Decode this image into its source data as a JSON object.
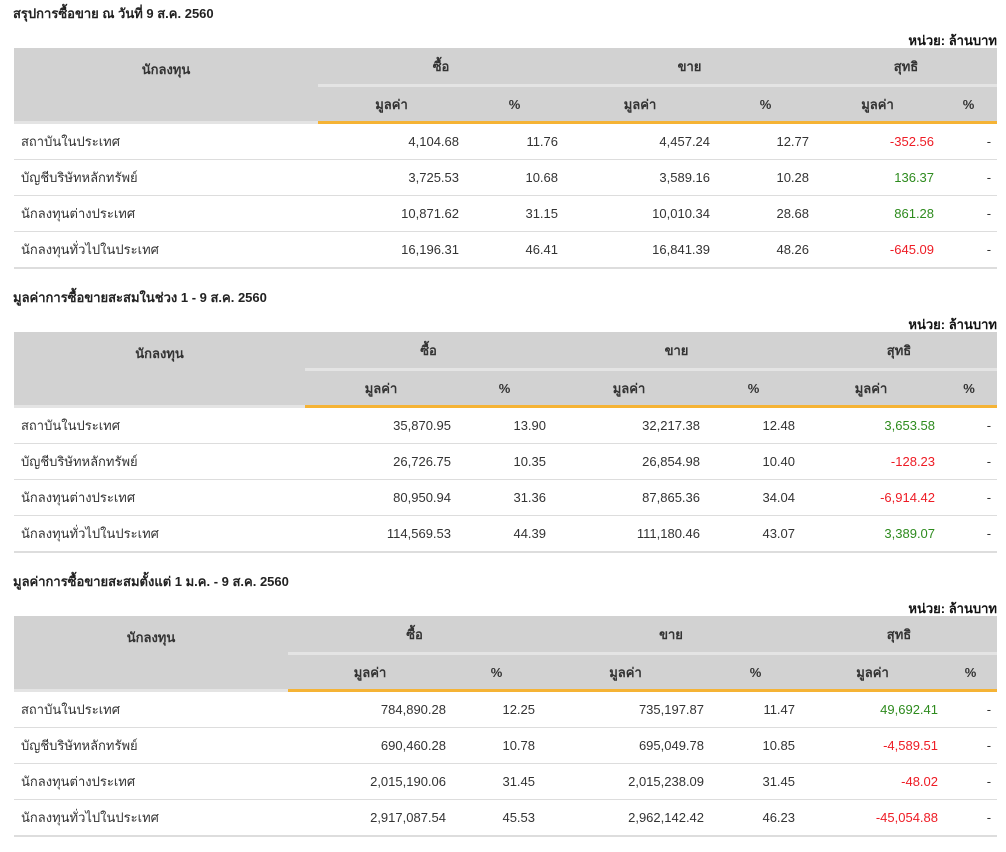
{
  "headers": {
    "investor": "นักลงทุน",
    "buy": "ซื้อ",
    "sell": "ขาย",
    "net": "สุทธิ",
    "value": "มูลค่า",
    "pct": "%"
  },
  "unit": "หน่วย: ล้านบาท",
  "colors": {
    "negative": "#ee1c25",
    "positive": "#2e8b1e",
    "accent": "#f5b335"
  },
  "sections": [
    {
      "title": "สรุปการซื้อขาย ณ วันที่ 9 ส.ค. 2560",
      "rows": [
        [
          "สถาบันในประเทศ",
          "4,104.68",
          "11.76",
          "4,457.24",
          "12.77",
          "-352.56",
          "-"
        ],
        [
          "บัญชีบริษัทหลักทรัพย์",
          "3,725.53",
          "10.68",
          "3,589.16",
          "10.28",
          "136.37",
          "-"
        ],
        [
          "นักลงทุนต่างประเทศ",
          "10,871.62",
          "31.15",
          "10,010.34",
          "28.68",
          "861.28",
          "-"
        ],
        [
          "นักลงทุนทั่วไปในประเทศ",
          "16,196.31",
          "46.41",
          "16,841.39",
          "48.26",
          "-645.09",
          "-"
        ]
      ]
    },
    {
      "title": "มูลค่าการซื้อขายสะสมในช่วง 1 - 9 ส.ค. 2560",
      "rows": [
        [
          "สถาบันในประเทศ",
          "35,870.95",
          "13.90",
          "32,217.38",
          "12.48",
          "3,653.58",
          "-"
        ],
        [
          "บัญชีบริษัทหลักทรัพย์",
          "26,726.75",
          "10.35",
          "26,854.98",
          "10.40",
          "-128.23",
          "-"
        ],
        [
          "นักลงทุนต่างประเทศ",
          "80,950.94",
          "31.36",
          "87,865.36",
          "34.04",
          "-6,914.42",
          "-"
        ],
        [
          "นักลงทุนทั่วไปในประเทศ",
          "114,569.53",
          "44.39",
          "111,180.46",
          "43.07",
          "3,389.07",
          "-"
        ]
      ]
    },
    {
      "title": "มูลค่าการซื้อขายสะสมตั้งแต่ 1 ม.ค. - 9 ส.ค. 2560",
      "rows": [
        [
          "สถาบันในประเทศ",
          "784,890.28",
          "12.25",
          "735,197.87",
          "11.47",
          "49,692.41",
          "-"
        ],
        [
          "บัญชีบริษัทหลักทรัพย์",
          "690,460.28",
          "10.78",
          "695,049.78",
          "10.85",
          "-4,589.51",
          "-"
        ],
        [
          "นักลงทุนต่างประเทศ",
          "2,015,190.06",
          "31.45",
          "2,015,238.09",
          "31.45",
          "-48.02",
          "-"
        ],
        [
          "นักลงทุนทั่วไปในประเทศ",
          "2,917,087.54",
          "45.53",
          "2,962,142.42",
          "46.23",
          "-45,054.88",
          "-"
        ]
      ]
    }
  ]
}
